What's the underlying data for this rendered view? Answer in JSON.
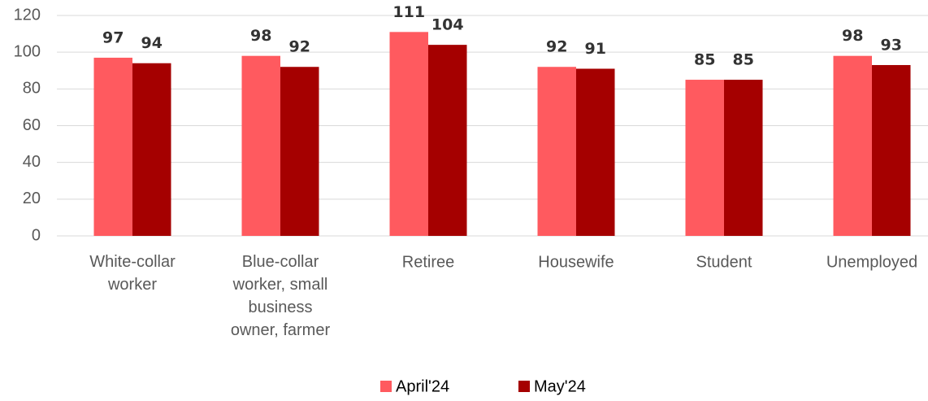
{
  "chart_data": {
    "type": "bar",
    "categories": [
      "White-collar\nworker",
      "Blue-collar\nworker, small\nbusiness\nowner, farmer",
      "Retiree",
      "Housewife",
      "Student",
      "Unemployed"
    ],
    "series": [
      {
        "name": "April'24",
        "color": "#ff5a5f",
        "values": [
          97,
          98,
          111,
          92,
          85,
          98
        ]
      },
      {
        "name": "May'24",
        "color": "#a50000",
        "values": [
          94,
          92,
          104,
          91,
          85,
          93
        ]
      }
    ],
    "ylim": [
      0,
      120
    ],
    "yticks": [
      0,
      20,
      40,
      60,
      80,
      100,
      120
    ],
    "grid": true,
    "legend": "bottom"
  }
}
